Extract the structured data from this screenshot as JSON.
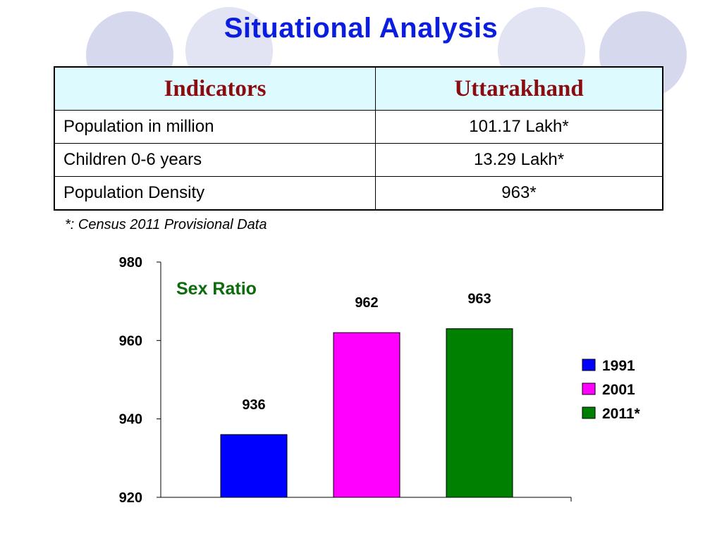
{
  "slide": {
    "title": "Situational Analysis",
    "footnote": "*: Census 2011 Provisional Data"
  },
  "table": {
    "headers": [
      "Indicators",
      "Uttarakhand"
    ],
    "rows": [
      [
        "Population in million",
        "101.17 Lakh*"
      ],
      [
        "Children 0-6 years",
        "13.29 Lakh*"
      ],
      [
        "Population Density",
        "963*"
      ]
    ]
  },
  "colors": {
    "title": "#0b1ee0",
    "header_text": "#8b0c10",
    "header_bg": "#ddfbfe",
    "chart_title": "#0c6b0c",
    "decor_circle": "#d6d8ee"
  },
  "chart_data": {
    "type": "bar",
    "title": "Sex Ratio",
    "categories": [
      "1991",
      "2001",
      "2011*"
    ],
    "values": [
      936,
      962,
      963
    ],
    "colors": [
      "#0000ff",
      "#ff00ff",
      "#008000"
    ],
    "legend": [
      "1991",
      "2001",
      "2011*"
    ],
    "legend_position": "right",
    "ylim": [
      920,
      980
    ],
    "yticks": [
      980,
      960,
      940,
      920
    ],
    "xlabel": "",
    "ylabel": "",
    "grid": false
  }
}
